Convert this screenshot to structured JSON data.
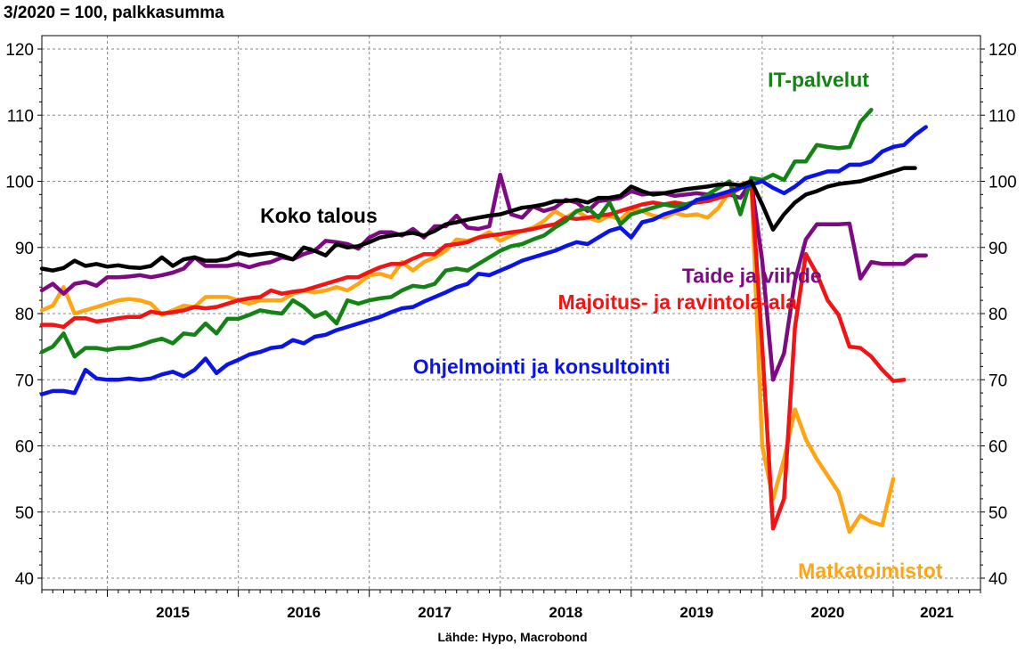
{
  "subtitle": "3/2020 = 100, palkkasumma",
  "source": "Lähde: Hypo, Macrobond",
  "chart_data": {
    "type": "line",
    "title": "",
    "ylabel": "3/2020 = 100, palkkasumma",
    "xlabel": "",
    "ylim": [
      38,
      122
    ],
    "yticks": [
      40,
      50,
      60,
      70,
      80,
      90,
      100,
      110,
      120
    ],
    "x_start": "2014-07",
    "x_end": "2021-09",
    "xtick_labels": [
      "2015",
      "2016",
      "2017",
      "2018",
      "2019",
      "2020",
      "2021"
    ],
    "grid": true,
    "series": [
      {
        "name": "Koko talous",
        "color": "#000000",
        "start": "2014-07",
        "label_anchor": "2016-03",
        "values": [
          86.8,
          86.5,
          86.9,
          88.0,
          87.2,
          87.5,
          87.1,
          87.3,
          87.0,
          86.9,
          87.2,
          88.5,
          87.2,
          88.2,
          88.5,
          88.0,
          88.0,
          88.3,
          89.2,
          88.8,
          89.0,
          89.2,
          88.8,
          88.2,
          90.0,
          89.5,
          88.8,
          90.5,
          90.0,
          90.2,
          90.8,
          91.5,
          91.8,
          92.0,
          92.2,
          91.8,
          92.5,
          93.5,
          93.8,
          94.2,
          94.5,
          94.8,
          95.0,
          95.5,
          96.0,
          96.2,
          96.5,
          97.0,
          97.0,
          97.2,
          96.8,
          97.5,
          97.5,
          97.8,
          99.2,
          98.5,
          98.0,
          98.2,
          98.5,
          98.8,
          99.0,
          99.2,
          99.5,
          99.6,
          99.4,
          100.0,
          96.5,
          92.7,
          95.0,
          96.8,
          98.0,
          98.5,
          99.2,
          99.6,
          99.8,
          100.0,
          100.5,
          101.0,
          101.5,
          102.0,
          102.0
        ]
      },
      {
        "name": "IT-palvelut",
        "color": "#148214",
        "start": "2014-07",
        "label_anchor": "2020-06",
        "values": [
          74.2,
          75.0,
          77.0,
          73.5,
          74.8,
          74.8,
          74.5,
          74.8,
          74.8,
          75.2,
          75.8,
          76.2,
          75.5,
          77.0,
          76.8,
          78.5,
          77.0,
          79.2,
          79.2,
          79.8,
          80.5,
          80.2,
          80.0,
          82.0,
          81.0,
          79.5,
          80.2,
          78.5,
          82.0,
          81.5,
          82.0,
          82.3,
          82.5,
          83.5,
          84.2,
          84.0,
          84.5,
          86.5,
          86.8,
          86.5,
          87.5,
          88.5,
          89.5,
          90.2,
          90.5,
          91.2,
          91.8,
          93.0,
          94.0,
          95.5,
          96.0,
          94.5,
          96.8,
          93.5,
          95.0,
          95.5,
          96.0,
          96.5,
          96.2,
          96.5,
          97.0,
          98.0,
          99.0,
          100.0,
          95.0,
          100.5,
          100.2,
          101.0,
          100.2,
          103.0,
          103.0,
          105.5,
          105.2,
          105.0,
          105.2,
          109.0,
          110.8
        ]
      },
      {
        "name": "Ohjelmointi ja konsultointi",
        "color": "#0a14e6",
        "start": "2014-07",
        "label_anchor": "2017-05",
        "values": [
          67.8,
          68.3,
          68.3,
          68.0,
          71.5,
          70.2,
          70.0,
          70.0,
          70.2,
          70.0,
          70.2,
          70.8,
          71.2,
          70.5,
          71.5,
          73.2,
          71.0,
          72.3,
          73.0,
          73.8,
          74.2,
          74.8,
          75.0,
          76.0,
          75.5,
          76.5,
          76.8,
          77.5,
          78.0,
          78.5,
          79.0,
          79.5,
          80.2,
          80.8,
          81.0,
          81.8,
          82.5,
          83.2,
          84.0,
          84.5,
          86.0,
          85.8,
          86.5,
          87.2,
          88.0,
          88.5,
          89.0,
          89.5,
          90.2,
          90.8,
          90.5,
          91.5,
          92.5,
          93.0,
          91.5,
          93.8,
          94.2,
          95.0,
          95.5,
          96.0,
          97.2,
          97.5,
          98.0,
          98.5,
          99.0,
          99.5,
          100.0,
          99.0,
          98.2,
          99.2,
          100.5,
          101.0,
          101.5,
          101.5,
          102.5,
          102.5,
          103.0,
          104.5,
          105.2,
          105.5,
          107.0,
          108.2
        ]
      },
      {
        "name": "Taide ja viihde",
        "color": "#7d0a82",
        "start": "2014-07",
        "label_anchor": "2020-01",
        "values": [
          83.5,
          84.5,
          83.0,
          84.5,
          84.8,
          84.2,
          85.5,
          85.5,
          85.6,
          85.8,
          85.5,
          85.8,
          86.2,
          86.8,
          88.5,
          87.2,
          87.2,
          87.2,
          87.5,
          87.0,
          87.5,
          87.8,
          88.5,
          88.2,
          89.0,
          89.5,
          91.0,
          90.8,
          90.5,
          89.8,
          91.5,
          92.3,
          92.3,
          91.8,
          92.8,
          91.5,
          93.2,
          93.2,
          94.8,
          93.0,
          92.8,
          93.2,
          101.0,
          95.0,
          94.5,
          96.2,
          95.5,
          96.0,
          97.2,
          96.8,
          95.5,
          97.0,
          97.2,
          97.5,
          98.5,
          98.0,
          98.2,
          98.2,
          97.8,
          98.0,
          98.2,
          98.0,
          97.8,
          98.0,
          97.5,
          100.0,
          88.0,
          70.0,
          74.0,
          85.0,
          91.2,
          93.5,
          93.5,
          93.5,
          93.6,
          85.3,
          87.8,
          87.5,
          87.5,
          87.5,
          88.8,
          88.8
        ]
      },
      {
        "name": "Majoitus- ja ravintola-ala",
        "color": "#f01414",
        "start": "2014-07",
        "label_anchor": "2018-12",
        "values": [
          78.3,
          78.3,
          78.0,
          79.3,
          79.3,
          78.8,
          79.0,
          79.3,
          79.5,
          79.5,
          80.3,
          80.0,
          80.2,
          80.5,
          81.0,
          80.8,
          81.0,
          81.5,
          82.0,
          82.3,
          82.5,
          83.5,
          83.0,
          83.3,
          83.5,
          84.0,
          84.5,
          85.0,
          85.5,
          85.5,
          86.3,
          87.0,
          87.5,
          87.5,
          88.3,
          89.0,
          89.0,
          90.3,
          90.5,
          90.8,
          91.5,
          91.8,
          92.0,
          92.3,
          92.5,
          92.8,
          93.2,
          93.5,
          94.5,
          94.3,
          94.5,
          94.8,
          95.0,
          95.5,
          96.0,
          96.5,
          96.8,
          96.5,
          96.8,
          96.5,
          96.8,
          97.0,
          97.5,
          98.0,
          99.0,
          100.0,
          75.0,
          47.5,
          52.0,
          78.0,
          89.0,
          86.0,
          82.0,
          79.8,
          75.0,
          74.8,
          73.5,
          71.5,
          69.8,
          70.0
        ]
      },
      {
        "name": "Matkatoimistot",
        "color": "#ffa514",
        "start": "2014-07",
        "label_anchor": "2020-10",
        "values": [
          80.5,
          81.2,
          84.0,
          80.0,
          80.5,
          81.0,
          81.5,
          82.0,
          82.2,
          82.0,
          81.5,
          79.8,
          80.5,
          81.2,
          81.0,
          82.5,
          82.5,
          82.5,
          82.0,
          81.5,
          82.0,
          82.0,
          82.0,
          83.0,
          83.5,
          83.2,
          83.5,
          84.0,
          83.5,
          84.5,
          85.8,
          86.0,
          85.5,
          87.8,
          86.5,
          87.8,
          88.5,
          89.5,
          91.2,
          91.0,
          91.5,
          92.3,
          91.0,
          91.8,
          92.5,
          93.0,
          94.0,
          95.5,
          94.5,
          95.5,
          94.5,
          94.0,
          94.8,
          94.2,
          95.8,
          95.5,
          94.8,
          94.5,
          95.2,
          94.8,
          95.0,
          94.5,
          96.0,
          98.5,
          99.5,
          100.0,
          60.0,
          52.0,
          58.0,
          65.5,
          61.0,
          58.0,
          55.5,
          53.0,
          47.0,
          49.5,
          48.5,
          48.0,
          55.0
        ]
      }
    ]
  }
}
